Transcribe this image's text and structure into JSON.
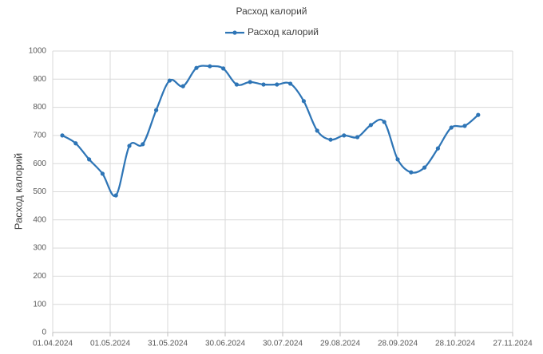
{
  "chart_data": {
    "type": "line",
    "title": "Расход калорий",
    "y_label": "Расход калорий",
    "x": [
      "06.04.2024",
      "13.04.2024",
      "20.04.2024",
      "27.04.2024",
      "04.05.2024",
      "11.05.2024",
      "18.05.2024",
      "25.05.2024",
      "01.06.2024",
      "08.06.2024",
      "15.06.2024",
      "22.06.2024",
      "29.06.2024",
      "06.07.2024",
      "13.07.2024",
      "20.07.2024",
      "27.07.2024",
      "03.08.2024",
      "10.08.2024",
      "17.08.2024",
      "24.08.2024",
      "31.08.2024",
      "07.09.2024",
      "14.09.2024",
      "21.09.2024",
      "28.09.2024",
      "05.10.2024",
      "12.10.2024",
      "19.10.2024",
      "26.10.2024",
      "02.11.2024",
      "09.11.2024"
    ],
    "series": [
      {
        "name": "Расход калорий",
        "color": "#2e75b6",
        "values": [
          700,
          672,
          615,
          564,
          487,
          663,
          669,
          790,
          895,
          875,
          940,
          946,
          938,
          881,
          890,
          881,
          881,
          884,
          822,
          717,
          685,
          700,
          694,
          737,
          748,
          615,
          569,
          586,
          654,
          728,
          734,
          773
        ]
      }
    ],
    "xlim": [
      "01.04.2024",
      "27.11.2024"
    ],
    "xticks": [
      "01.04.2024",
      "01.05.2024",
      "31.05.2024",
      "30.06.2024",
      "30.07.2024",
      "29.08.2024",
      "28.09.2024",
      "28.10.2024",
      "27.11.2024"
    ],
    "ylim": [
      0,
      1000
    ],
    "yticks": [
      0,
      100,
      200,
      300,
      400,
      500,
      600,
      700,
      800,
      900,
      1000
    ],
    "grid": true,
    "smooth": true,
    "legend": "top"
  }
}
